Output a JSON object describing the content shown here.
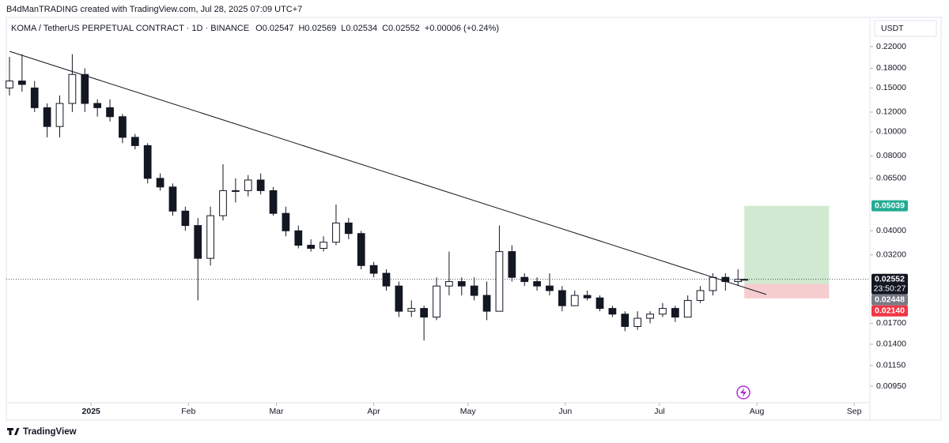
{
  "chart_data": {
    "type": "candlestick",
    "attribution": "B4dManTRADING created with TradingView.com, Jul 28, 2025 07:09 UTC+7",
    "symbol": "KOMA / TetherUS PERPETUAL CONTRACT · 1D · BINANCE",
    "ohlc": [
      "O0.02547",
      "H0.02569",
      "L0.02534",
      "C0.02552",
      "+0.00006 (+0.24%)"
    ],
    "currency": "USDT",
    "logo": "TradingView",
    "log_scale": true,
    "xlim": [
      -27,
      248
    ],
    "ylim": [
      0.00704,
      0.2437
    ],
    "xticks": [
      {
        "value": 0,
        "label": "2025"
      },
      {
        "value": 31,
        "label": "Feb"
      },
      {
        "value": 59,
        "label": "Mar"
      },
      {
        "value": 90,
        "label": "Apr"
      },
      {
        "value": 120,
        "label": "May"
      },
      {
        "value": 151,
        "label": "Jun"
      },
      {
        "value": 181,
        "label": "Jul"
      },
      {
        "value": 212,
        "label": "Aug"
      },
      {
        "value": 243,
        "label": "Sep"
      }
    ],
    "yticks": [
      {
        "value": 0.22,
        "label": "0.22000"
      },
      {
        "value": 0.18,
        "label": "0.18000"
      },
      {
        "value": 0.15,
        "label": "0.15000"
      },
      {
        "value": 0.12,
        "label": "0.12000"
      },
      {
        "value": 0.1,
        "label": "0.10000"
      },
      {
        "value": 0.08,
        "label": "0.08000"
      },
      {
        "value": 0.065,
        "label": "0.06500"
      },
      {
        "value": 0.04,
        "label": "0.04000"
      },
      {
        "value": 0.032,
        "label": "0.03200"
      },
      {
        "value": 0.017,
        "label": "0.01700"
      },
      {
        "value": 0.014,
        "label": "0.01400"
      },
      {
        "value": 0.0115,
        "label": "0.01150"
      },
      {
        "value": 0.0095,
        "label": "0.00950"
      }
    ],
    "up_color": "#ffffff",
    "down_color": "#131722",
    "x": [
      -26,
      -22,
      -18,
      -14,
      -10,
      -6,
      -2,
      2,
      6,
      10,
      14,
      18,
      22,
      26,
      30,
      34,
      38,
      42,
      46,
      50,
      54,
      58,
      62,
      66,
      70,
      74,
      78,
      82,
      86,
      90,
      94,
      98,
      102,
      106,
      110,
      114,
      118,
      122,
      126,
      130,
      134,
      138,
      142,
      146,
      150,
      154,
      158,
      162,
      166,
      170,
      174,
      178,
      182,
      186,
      190,
      194,
      198,
      202,
      206,
      208
    ],
    "open": [
      0.15,
      0.16,
      0.15,
      0.125,
      0.105,
      0.13,
      0.17,
      0.13,
      0.125,
      0.115,
      0.095,
      0.088,
      0.065,
      0.06,
      0.048,
      0.042,
      0.031,
      0.046,
      0.058,
      0.058,
      0.064,
      0.058,
      0.047,
      0.04,
      0.035,
      0.034,
      0.036,
      0.043,
      0.039,
      0.029,
      0.027,
      0.024,
      0.019,
      0.0195,
      0.018,
      0.024,
      0.025,
      0.024,
      0.022,
      0.019,
      0.033,
      0.026,
      0.025,
      0.024,
      0.023,
      0.02,
      0.022,
      0.0215,
      0.0195,
      0.0185,
      0.0165,
      0.0178,
      0.0185,
      0.0195,
      0.018,
      0.021,
      0.023,
      0.026,
      0.025,
      0.02547
    ],
    "high": [
      0.2,
      0.205,
      0.16,
      0.13,
      0.14,
      0.205,
      0.18,
      0.135,
      0.135,
      0.118,
      0.098,
      0.09,
      0.068,
      0.062,
      0.05,
      0.045,
      0.05,
      0.074,
      0.065,
      0.067,
      0.068,
      0.06,
      0.05,
      0.042,
      0.037,
      0.038,
      0.051,
      0.045,
      0.04,
      0.03,
      0.028,
      0.025,
      0.021,
      0.02,
      0.026,
      0.033,
      0.026,
      0.026,
      0.025,
      0.042,
      0.035,
      0.027,
      0.026,
      0.027,
      0.024,
      0.023,
      0.023,
      0.022,
      0.02,
      0.019,
      0.019,
      0.019,
      0.0205,
      0.02,
      0.022,
      0.024,
      0.027,
      0.027,
      0.028,
      0.02569
    ],
    "low": [
      0.14,
      0.145,
      0.12,
      0.095,
      0.095,
      0.12,
      0.12,
      0.115,
      0.11,
      0.09,
      0.085,
      0.062,
      0.058,
      0.046,
      0.04,
      0.021,
      0.029,
      0.044,
      0.052,
      0.055,
      0.056,
      0.046,
      0.038,
      0.034,
      0.033,
      0.033,
      0.035,
      0.037,
      0.028,
      0.026,
      0.023,
      0.018,
      0.018,
      0.0145,
      0.0175,
      0.022,
      0.022,
      0.021,
      0.0175,
      0.019,
      0.025,
      0.024,
      0.023,
      0.022,
      0.019,
      0.02,
      0.021,
      0.019,
      0.018,
      0.0158,
      0.016,
      0.017,
      0.018,
      0.0172,
      0.018,
      0.0205,
      0.022,
      0.023,
      0.024,
      0.02534
    ],
    "close": [
      0.16,
      0.155,
      0.125,
      0.105,
      0.13,
      0.17,
      0.13,
      0.125,
      0.115,
      0.095,
      0.088,
      0.065,
      0.06,
      0.048,
      0.042,
      0.031,
      0.046,
      0.058,
      0.058,
      0.064,
      0.058,
      0.047,
      0.04,
      0.035,
      0.034,
      0.036,
      0.043,
      0.039,
      0.029,
      0.027,
      0.024,
      0.019,
      0.0195,
      0.018,
      0.024,
      0.025,
      0.024,
      0.022,
      0.019,
      0.033,
      0.026,
      0.025,
      0.024,
      0.023,
      0.02,
      0.022,
      0.0215,
      0.0195,
      0.0185,
      0.0165,
      0.0178,
      0.0185,
      0.0195,
      0.018,
      0.021,
      0.023,
      0.026,
      0.025,
      0.0255,
      0.02552
    ],
    "trendline": {
      "x": [
        -26,
        215
      ],
      "values": [
        0.2106,
        0.0222
      ],
      "color": "#131722"
    },
    "position": {
      "start": 208,
      "end": 235,
      "entry": 0.02448,
      "target": 0.05039,
      "stop": 0.0214,
      "profit_color": "#c8e6c9",
      "loss_color": "#f5c4c7"
    },
    "price_labels": [
      {
        "value": 0.05039,
        "label": "0.05039",
        "color": "#22ab94"
      },
      {
        "value": 0.02552,
        "label": "0.02552",
        "color": "#131722",
        "countdown": "23:50:27"
      },
      {
        "value": 0.02448,
        "label": "0.02448",
        "color": "#787b86"
      },
      {
        "value": 0.0214,
        "label": "0.02140",
        "color": "#f23645"
      }
    ]
  }
}
